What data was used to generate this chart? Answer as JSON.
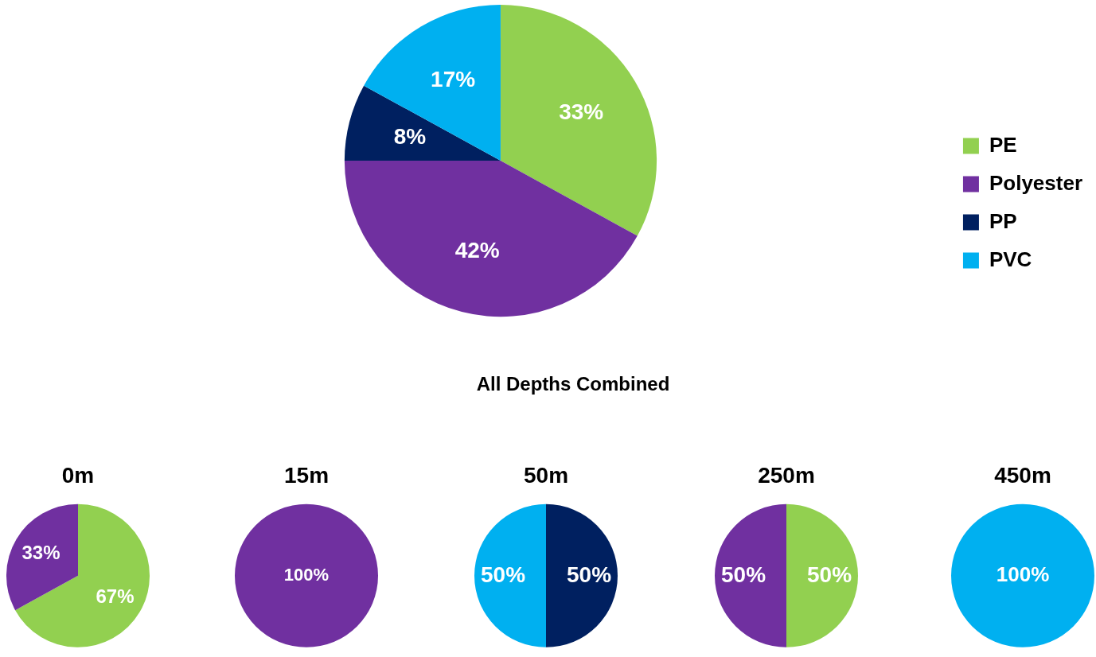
{
  "chart_data": [
    {
      "type": "pie",
      "title": "All Depths Combined",
      "categories": [
        "PE",
        "Polyester",
        "PP",
        "PVC"
      ],
      "values": [
        33,
        42,
        8,
        17
      ],
      "value_labels": [
        "33%",
        "42%",
        "8%",
        "17%"
      ],
      "colors": [
        "#92d050",
        "#7030a0",
        "#002060",
        "#00b0f0"
      ],
      "legend": "right"
    },
    {
      "type": "pie",
      "title": "0m",
      "categories": [
        null,
        null
      ],
      "values": [
        67,
        33
      ],
      "value_labels": [
        "67%",
        "33%"
      ],
      "colors": [
        "#92d050",
        "#7030a0"
      ]
    },
    {
      "type": "pie",
      "title": "15m",
      "categories": [
        null
      ],
      "values": [
        100
      ],
      "value_labels": [
        "100%"
      ],
      "colors": [
        "#7030a0"
      ]
    },
    {
      "type": "pie",
      "title": "50m",
      "categories": [
        null,
        null
      ],
      "values": [
        50,
        50
      ],
      "value_labels": [
        "50%",
        "50%"
      ],
      "colors": [
        "#002060",
        "#00b0f0"
      ]
    },
    {
      "type": "pie",
      "title": "250m",
      "categories": [
        null,
        null
      ],
      "values": [
        50,
        50
      ],
      "value_labels": [
        "50%",
        "50%"
      ],
      "colors": [
        "#92d050",
        "#7030a0"
      ]
    },
    {
      "type": "pie",
      "title": "450m",
      "categories": [
        null
      ],
      "values": [
        100
      ],
      "value_labels": [
        "100%"
      ],
      "colors": [
        "#00b0f0"
      ]
    }
  ]
}
